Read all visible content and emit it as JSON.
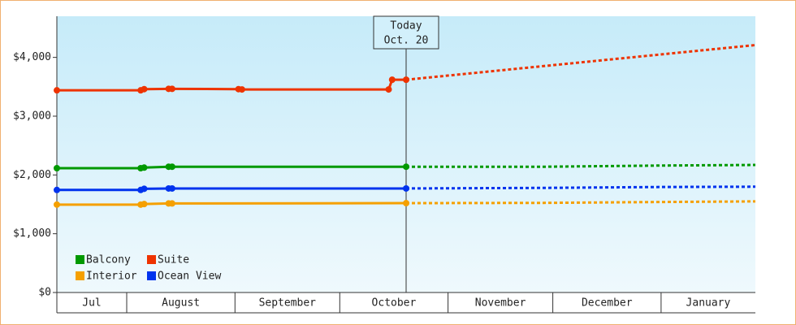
{
  "chart_data": {
    "type": "line",
    "xlim": [
      0,
      200
    ],
    "ylim": [
      0,
      4700
    ],
    "yticks": [
      {
        "value": 0,
        "label": "$0"
      },
      {
        "value": 1000,
        "label": "$1,000"
      },
      {
        "value": 2000,
        "label": "$2,000"
      },
      {
        "value": 3000,
        "label": "$3,000"
      },
      {
        "value": 4000,
        "label": "$4,000"
      }
    ],
    "xticks": [
      {
        "value": 0,
        "label": "Jul"
      },
      {
        "value": 20,
        "label": "August"
      },
      {
        "value": 51,
        "label": "September"
      },
      {
        "value": 81,
        "label": "October"
      },
      {
        "value": 112,
        "label": "November"
      },
      {
        "value": 142,
        "label": "December"
      },
      {
        "value": 173,
        "label": "January"
      }
    ],
    "annotation": {
      "x": 100,
      "text": [
        "Today",
        "Oct. 20"
      ]
    },
    "legend": "lower left",
    "series": [
      {
        "name": "Balcony",
        "color": "#009900",
        "x": [
          0,
          24,
          25,
          32,
          33,
          100
        ],
        "values": [
          2115,
          2115,
          2125,
          2140,
          2140,
          2140
        ],
        "forecast": {
          "x": [
            100,
            140,
            173,
            200
          ],
          "values": [
            2140,
            2140,
            2160,
            2170
          ]
        }
      },
      {
        "name": "Suite",
        "color": "#ee3300",
        "x": [
          0,
          24,
          25,
          32,
          33,
          52,
          53,
          95,
          96,
          100
        ],
        "values": [
          3440,
          3440,
          3460,
          3465,
          3465,
          3460,
          3455,
          3455,
          3620,
          3620
        ],
        "forecast": {
          "x": [
            100,
            200
          ],
          "values": [
            3620,
            4210
          ]
        }
      },
      {
        "name": "Interior",
        "color": "#f5a000",
        "x": [
          0,
          24,
          25,
          32,
          33,
          100
        ],
        "values": [
          1495,
          1495,
          1505,
          1515,
          1515,
          1520
        ],
        "forecast": {
          "x": [
            100,
            140,
            173,
            200
          ],
          "values": [
            1520,
            1525,
            1540,
            1550
          ]
        }
      },
      {
        "name": "Ocean View",
        "color": "#0033ee",
        "x": [
          0,
          24,
          25,
          32,
          33,
          100
        ],
        "values": [
          1745,
          1745,
          1765,
          1770,
          1770,
          1770
        ],
        "forecast": {
          "x": [
            100,
            140,
            173,
            200
          ],
          "values": [
            1770,
            1780,
            1795,
            1800
          ]
        }
      }
    ]
  }
}
